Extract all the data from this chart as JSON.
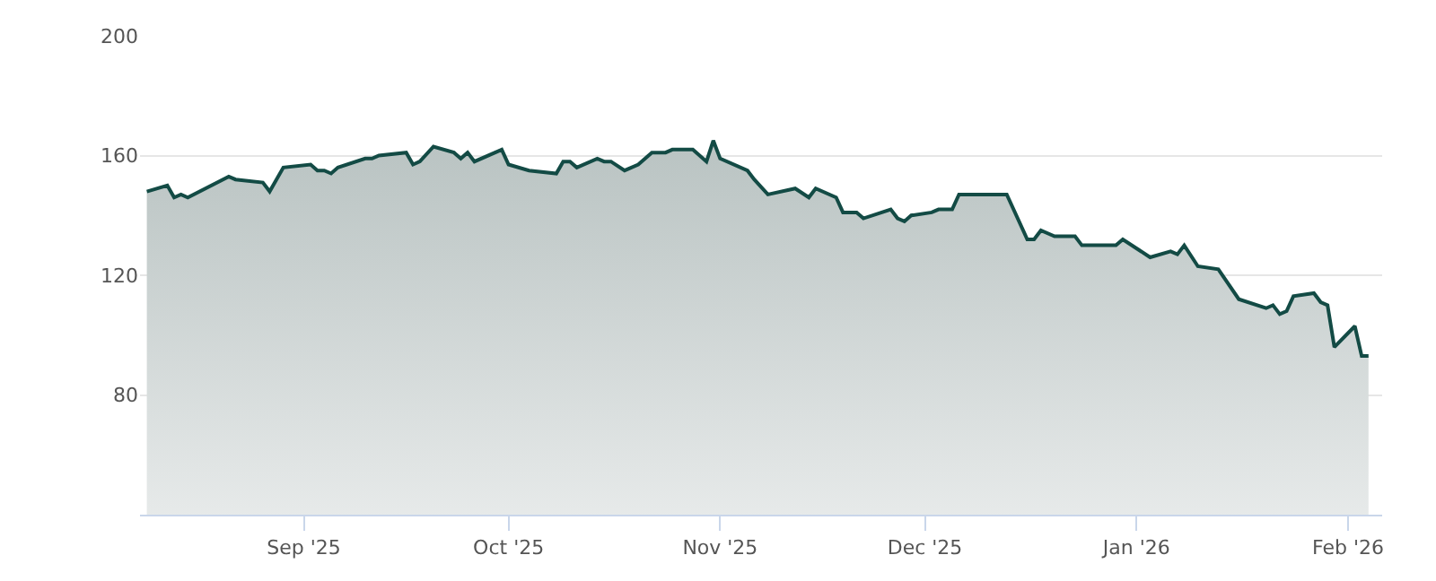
{
  "chart_data": {
    "type": "area",
    "x": [
      "2025-08-09",
      "2025-08-12",
      "2025-08-13",
      "2025-08-14",
      "2025-08-15",
      "2025-08-21",
      "2025-08-22",
      "2025-08-26",
      "2025-08-27",
      "2025-08-29",
      "2025-09-02",
      "2025-09-03",
      "2025-09-04",
      "2025-09-05",
      "2025-09-06",
      "2025-09-10",
      "2025-09-11",
      "2025-09-12",
      "2025-09-16",
      "2025-09-17",
      "2025-09-18",
      "2025-09-20",
      "2025-09-23",
      "2025-09-24",
      "2025-09-25",
      "2025-09-26",
      "2025-09-30",
      "2025-10-01",
      "2025-10-04",
      "2025-10-08",
      "2025-10-09",
      "2025-10-10",
      "2025-10-11",
      "2025-10-14",
      "2025-10-15",
      "2025-10-16",
      "2025-10-18",
      "2025-10-20",
      "2025-10-22",
      "2025-10-24",
      "2025-10-25",
      "2025-10-28",
      "2025-10-30",
      "2025-10-31",
      "2025-11-01",
      "2025-11-05",
      "2025-11-06",
      "2025-11-08",
      "2025-11-12",
      "2025-11-14",
      "2025-11-15",
      "2025-11-18",
      "2025-11-19",
      "2025-11-21",
      "2025-11-22",
      "2025-11-26",
      "2025-11-27",
      "2025-11-28",
      "2025-11-29",
      "2025-12-02",
      "2025-12-03",
      "2025-12-04",
      "2025-12-05",
      "2025-12-06",
      "2025-12-10",
      "2025-12-13",
      "2025-12-16",
      "2025-12-17",
      "2025-12-18",
      "2025-12-20",
      "2025-12-23",
      "2025-12-24",
      "2025-12-29",
      "2025-12-30",
      "2026-01-03",
      "2026-01-06",
      "2026-01-07",
      "2026-01-08",
      "2026-01-10",
      "2026-01-13",
      "2026-01-16",
      "2026-01-20",
      "2026-01-21",
      "2026-01-22",
      "2026-01-23",
      "2026-01-24",
      "2026-01-27",
      "2026-01-28",
      "2026-01-29",
      "2026-01-30",
      "2026-02-02",
      "2026-02-03",
      "2026-02-04"
    ],
    "series": [
      {
        "color": "#134b45",
        "values": [
          148,
          150,
          146,
          147,
          146,
          153,
          152,
          151,
          148,
          156,
          157,
          155,
          155,
          154,
          156,
          159,
          159,
          160,
          161,
          157,
          158,
          163,
          161,
          159,
          161,
          158,
          162,
          157,
          155,
          154,
          158,
          158,
          156,
          159,
          158,
          158,
          155,
          157,
          161,
          161,
          162,
          162,
          158,
          165,
          159,
          155,
          152,
          147,
          149,
          146,
          149,
          146,
          141,
          141,
          139,
          142,
          139,
          138,
          140,
          141,
          142,
          142,
          142,
          147,
          147,
          147,
          132,
          132,
          135,
          133,
          133,
          130,
          130,
          132,
          126,
          128,
          127,
          130,
          123,
          122,
          112,
          109,
          110,
          107,
          108,
          113,
          114,
          111,
          110,
          96,
          103,
          93,
          93
        ]
      }
    ],
    "xlim": [
      "2025-08-08",
      "2026-02-06"
    ],
    "xticks": [
      {
        "value": "2025-09-01",
        "label": "Sep '25"
      },
      {
        "value": "2025-10-01",
        "label": "Oct '25"
      },
      {
        "value": "2025-11-01",
        "label": "Nov '25"
      },
      {
        "value": "2025-12-01",
        "label": "Dec '25"
      },
      {
        "value": "2026-01-01",
        "label": "Jan '26"
      },
      {
        "value": "2026-02-01",
        "label": "Feb '26"
      }
    ],
    "ylim": [
      40,
      200
    ],
    "yticks": [
      80,
      120,
      160,
      200
    ],
    "grid": "y"
  }
}
